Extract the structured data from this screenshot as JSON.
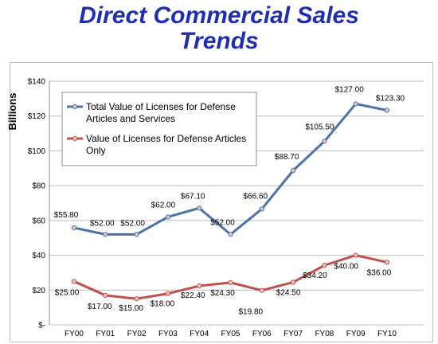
{
  "chart_data": {
    "type": "line",
    "title_line1": "Direct Commercial Sales",
    "title_line2": "Trends",
    "ylabel": "Billions",
    "xlabel": "",
    "ylim": [
      0,
      140
    ],
    "yticks": [
      {
        "value": 0,
        "label": "$-"
      },
      {
        "value": 20,
        "label": "$20"
      },
      {
        "value": 40,
        "label": "$40"
      },
      {
        "value": 60,
        "label": "$60"
      },
      {
        "value": 80,
        "label": "$80"
      },
      {
        "value": 100,
        "label": "$100"
      },
      {
        "value": 120,
        "label": "$120"
      },
      {
        "value": 140,
        "label": "$140"
      }
    ],
    "grid": true,
    "legend": "top-left",
    "categories": [
      "FY00",
      "FY01",
      "FY02",
      "FY03",
      "FY04",
      "FY05",
      "FY06",
      "FY07",
      "FY08",
      "FY09",
      "FY10"
    ],
    "series": [
      {
        "name": "Total Value of Licenses for Defense Articles and Services",
        "legend_lines": [
          "Total Value of Licenses for Defense",
          "Articles and Services"
        ],
        "color": "#4a73a8",
        "values": [
          55.8,
          52.0,
          52.0,
          62.0,
          67.1,
          52.0,
          66.6,
          88.7,
          105.5,
          127.0,
          123.3
        ],
        "labels": [
          "$55.80",
          "$52.00",
          "$52.00",
          "$62.00",
          "$67.10",
          "$52.00",
          "$66.60",
          "$88.70",
          "$105.50",
          "$127.00",
          "$123.30"
        ]
      },
      {
        "name": "Value of Licenses for Defense Articles Only",
        "legend_lines": [
          "Value of Licenses for Defense Articles",
          "Only"
        ],
        "color": "#c0504d",
        "values": [
          25.0,
          17.0,
          15.0,
          18.0,
          22.4,
          24.3,
          19.8,
          24.5,
          34.2,
          40.0,
          36.0
        ],
        "labels": [
          "$25.00",
          "$17.00",
          "$15.00",
          "$18.00",
          "$22.40",
          "$24.30",
          "$19.80",
          "$24.50",
          "$34.20",
          "$40.00",
          "$36.00"
        ]
      }
    ]
  }
}
